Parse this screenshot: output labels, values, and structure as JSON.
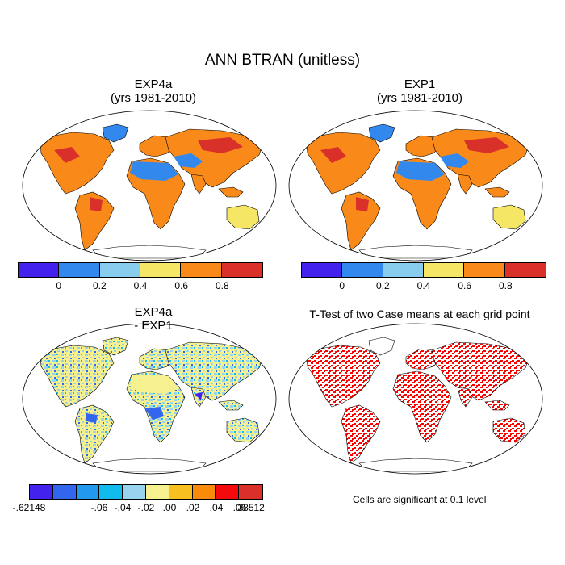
{
  "title": "ANN BTRAN (unitless)",
  "panels": {
    "top_left": {
      "title": "EXP4a",
      "subtitle": "(yrs 1981-2010)"
    },
    "top_right": {
      "title": "EXP1",
      "subtitle": "(yrs 1981-2010)"
    },
    "bottom_left": {
      "title": "EXP4a",
      "subtitle": "- EXP1"
    },
    "bottom_right": {
      "title": "T-Test of two Case means at each grid point"
    }
  },
  "colorbar_abs": {
    "colors": [
      "#4422ee",
      "#3388ee",
      "#88ccee",
      "#f6e666",
      "#f98a1a",
      "#d9302a"
    ],
    "tick_labels": [
      "0",
      "0.2",
      "0.4",
      "0.6",
      "0.8"
    ]
  },
  "colorbar_diff": {
    "colors": [
      "#4422ee",
      "#3366ee",
      "#2299ee",
      "#11bbee",
      "#99d4ee",
      "#f6f08e",
      "#f7c020",
      "#f98a0a",
      "#f40a0a",
      "#d9302a"
    ],
    "tick_labels": [
      "-.62148",
      "-.06",
      "-.04",
      "-.02",
      ".00",
      ".02",
      ".04",
      ".06",
      ".38512"
    ]
  },
  "significance_note": "Cells are significant at 0.1 level",
  "colors": {
    "significant": "#ff0000",
    "coast": "#000000"
  }
}
